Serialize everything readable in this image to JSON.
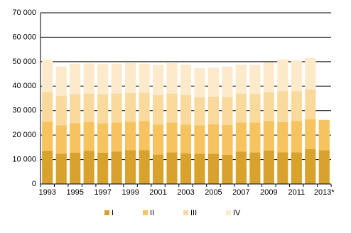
{
  "chart_data": {
    "type": "bar",
    "stacked": true,
    "categories": [
      "1993",
      null,
      "1995",
      null,
      "1997",
      null,
      "1999",
      null,
      "2001",
      null,
      "2003",
      null,
      "2005",
      null,
      "2007",
      null,
      "2009",
      null,
      "2011",
      null,
      "2013*"
    ],
    "series": [
      {
        "name": "I",
        "color": "#d9a22c",
        "values": [
          13500,
          12400,
          12800,
          13600,
          12800,
          13300,
          13800,
          13800,
          12100,
          12900,
          12500,
          12400,
          12400,
          12000,
          13300,
          12900,
          13700,
          13000,
          13000,
          14300,
          13800
        ]
      },
      {
        "name": "II",
        "color": "#f6c35e",
        "values": [
          12000,
          11600,
          12000,
          11700,
          12000,
          11900,
          11700,
          11900,
          12200,
          12300,
          11800,
          11600,
          12000,
          12200,
          11900,
          12300,
          12000,
          12300,
          12800,
          12200,
          12400
        ]
      },
      {
        "name": "III",
        "color": "#fad99c",
        "values": [
          12000,
          12000,
          12000,
          11700,
          11800,
          11800,
          11700,
          11600,
          12000,
          11800,
          12000,
          11500,
          11400,
          11300,
          11800,
          11600,
          11800,
          12700,
          12100,
          12200,
          null
        ]
      },
      {
        "name": "IV",
        "color": "#fdeacb",
        "values": [
          13300,
          12000,
          12400,
          12300,
          12400,
          12200,
          12300,
          11900,
          12400,
          12500,
          12500,
          11800,
          11800,
          12500,
          11800,
          11900,
          12300,
          13000,
          12600,
          12900,
          null
        ]
      }
    ],
    "ylim": [
      0,
      70000
    ],
    "yticks": [
      0,
      {
        "value": 10000,
        "label": "10 000"
      },
      {
        "value": 20000,
        "label": "20 000"
      },
      {
        "value": 30000,
        "label": "30 000"
      },
      {
        "value": 40000,
        "label": "40 000"
      },
      {
        "value": 50000,
        "label": "50 000"
      },
      {
        "value": 60000,
        "label": "60 000"
      },
      {
        "value": 70000,
        "label": "70 000"
      }
    ],
    "grid": true,
    "legend": "bottom"
  }
}
